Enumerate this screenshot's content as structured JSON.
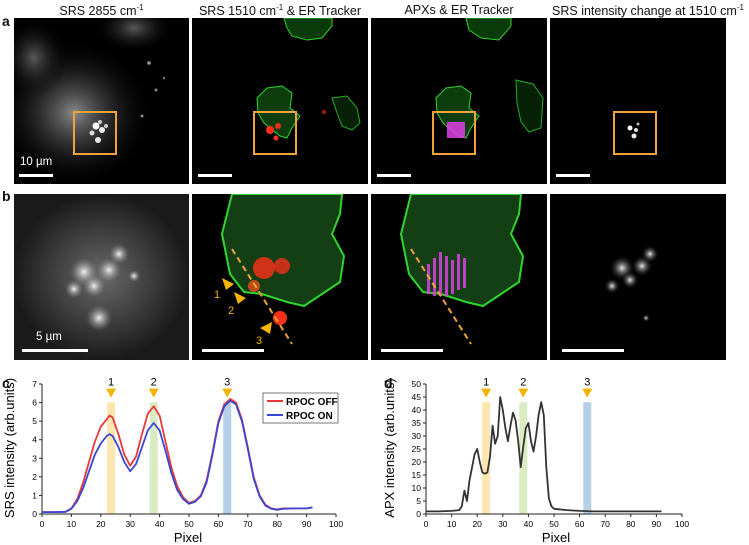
{
  "panels": {
    "a": "a",
    "b": "b",
    "c": "c",
    "d": "d"
  },
  "column_titles": {
    "col1_main": "SRS 2855 cm",
    "col1_sup": "-1",
    "col2_main": "SRS 1510 cm",
    "col2_sup": "-1",
    "col2_tail": " & ER Tracker",
    "col3": "APXs & ER Tracker",
    "col4_main": "SRS intensity change at 1510 cm",
    "col4_sup": "-1"
  },
  "scale_bars": {
    "row_a": "10 µm",
    "row_b": "5 µm"
  },
  "markers": [
    "1",
    "2",
    "3"
  ],
  "colors": {
    "highlight_box": "#f0a33a",
    "er_tracker": "#2fd42f",
    "srs_red": "#ff3018",
    "apx_magenta": "#e040e8",
    "rpoc_off": "#e8393a",
    "rpoc_on": "#3a46d6",
    "apx_line": "#333333",
    "band1": "#f9e2a0",
    "band2": "#d4e9b8",
    "band3": "#a8c8e2"
  },
  "chart_data": [
    {
      "type": "line",
      "panel": "c",
      "xlabel": "Pixel",
      "ylabel": "SRS intensity (arb.units)",
      "xlim": [
        0,
        100
      ],
      "ylim": [
        0,
        7
      ],
      "xticks": [
        "0",
        "10",
        "20",
        "30",
        "40",
        "50",
        "60",
        "70",
        "80",
        "90",
        "100"
      ],
      "yticks": [
        "0",
        "1",
        "2",
        "3",
        "4",
        "5",
        "6",
        "7"
      ],
      "legend_position": "top-right",
      "marked_pixels": [
        23.5,
        38,
        63
      ],
      "marker_labels": [
        "1",
        "2",
        "3"
      ],
      "x": [
        0,
        4,
        8,
        10,
        12,
        14,
        16,
        18,
        20,
        22,
        23,
        24,
        26,
        28,
        30,
        32,
        34,
        36,
        38,
        40,
        42,
        44,
        46,
        48,
        50,
        52,
        54,
        56,
        58,
        60,
        62,
        64,
        66,
        68,
        70,
        72,
        74,
        76,
        78,
        80,
        82,
        86,
        90,
        92
      ],
      "series": [
        {
          "name": "RPOC OFF",
          "values": [
            0.1,
            0.1,
            0.12,
            0.3,
            0.8,
            1.7,
            2.8,
            3.9,
            4.7,
            5.1,
            5.3,
            5.2,
            4.3,
            3.2,
            2.6,
            3.1,
            4.3,
            5.4,
            5.8,
            5.3,
            3.9,
            2.5,
            1.5,
            0.9,
            0.6,
            0.7,
            1.0,
            1.8,
            3.3,
            5.0,
            5.9,
            6.2,
            6.0,
            5.1,
            3.6,
            2.0,
            1.0,
            0.5,
            0.3,
            0.25,
            0.3,
            0.3,
            0.3,
            0.35
          ]
        },
        {
          "name": "RPOC ON",
          "values": [
            0.1,
            0.1,
            0.12,
            0.28,
            0.7,
            1.4,
            2.3,
            3.2,
            3.8,
            4.2,
            4.3,
            4.2,
            3.6,
            2.8,
            2.3,
            2.7,
            3.6,
            4.5,
            4.9,
            4.5,
            3.4,
            2.2,
            1.3,
            0.8,
            0.55,
            0.65,
            0.95,
            1.7,
            3.2,
            4.9,
            5.8,
            6.1,
            5.9,
            5.0,
            3.5,
            1.9,
            0.95,
            0.45,
            0.28,
            0.22,
            0.28,
            0.3,
            0.3,
            0.35
          ]
        }
      ]
    },
    {
      "type": "line",
      "panel": "d",
      "xlabel": "Pixel",
      "ylabel": "APX intensity (arb.units)",
      "xlim": [
        0,
        100
      ],
      "ylim": [
        0,
        50
      ],
      "xticks": [
        "0",
        "10",
        "20",
        "30",
        "40",
        "50",
        "60",
        "70",
        "80",
        "90",
        "100"
      ],
      "yticks": [
        "0",
        "5",
        "10",
        "15",
        "20",
        "25",
        "30",
        "35",
        "40",
        "45",
        "50"
      ],
      "marked_pixels": [
        23.5,
        38,
        63
      ],
      "marker_labels": [
        "1",
        "2",
        "3"
      ],
      "x": [
        0,
        5,
        10,
        13,
        14,
        15,
        16,
        17,
        18,
        19,
        20,
        21,
        22,
        23,
        24,
        25,
        26,
        27,
        28,
        29,
        30,
        31,
        32,
        33,
        34,
        35,
        36,
        37,
        38,
        39,
        40,
        41,
        42,
        43,
        44,
        45,
        46,
        47,
        48,
        49,
        50,
        55,
        60,
        65,
        70,
        80,
        90,
        92
      ],
      "series": [
        {
          "name": "",
          "values": [
            1,
            1,
            1.2,
            1.5,
            3,
            9,
            5,
            13,
            18,
            23,
            25,
            20,
            16,
            15.5,
            16,
            22,
            34,
            27,
            30,
            45,
            40,
            33,
            28,
            34,
            39,
            36,
            28,
            18,
            26,
            33,
            35,
            28,
            24,
            30,
            38,
            43,
            38,
            18,
            6,
            3,
            2,
            1.5,
            1.2,
            1,
            1,
            1,
            1,
            1
          ]
        }
      ]
    }
  ]
}
